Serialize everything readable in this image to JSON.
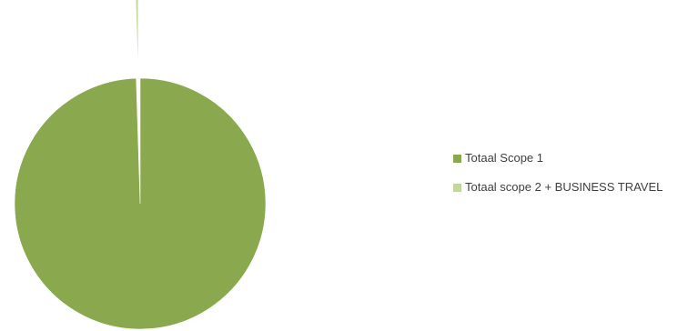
{
  "chart_data": {
    "type": "pie",
    "title": "",
    "categories": [
      "Totaal Scope 1",
      "Totaal scope 2 + BUSINESS TRAVEL"
    ],
    "values": [
      99.5,
      0.5
    ],
    "colors": [
      "#8AA84E",
      "#C3D69B"
    ],
    "legend_position": "right",
    "exploded_slice": "Totaal scope 2 + BUSINESS TRAVEL"
  }
}
